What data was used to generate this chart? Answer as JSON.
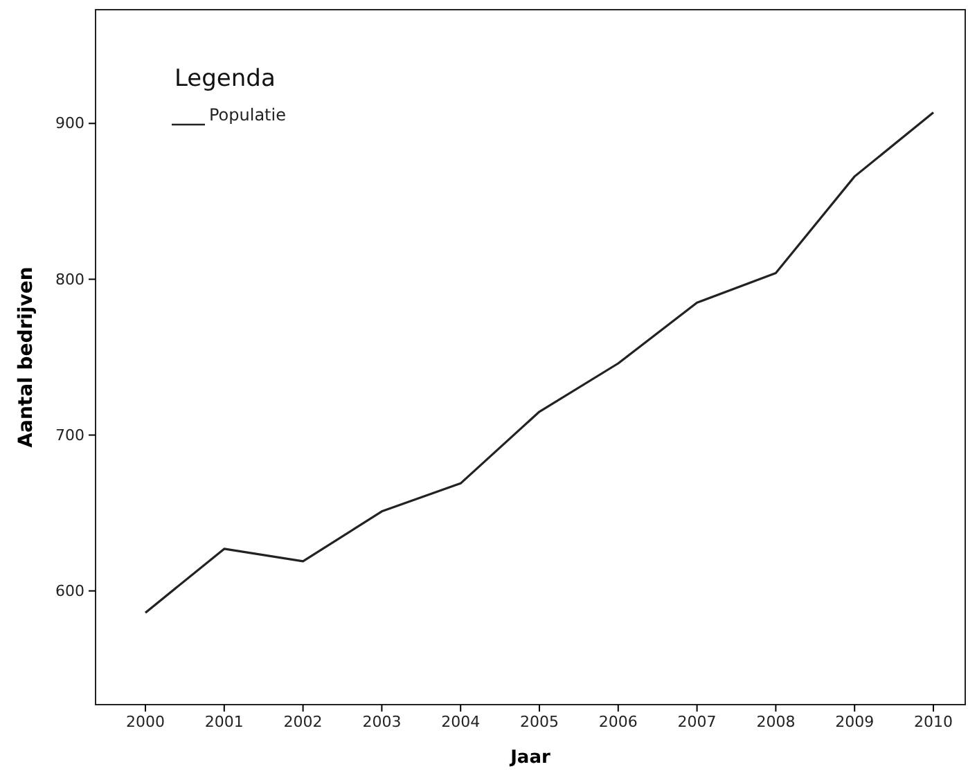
{
  "chart_data": {
    "type": "line",
    "xlabel": "Jaar",
    "ylabel": "Aantal bedrijven",
    "legend_title": "Legenda",
    "legend": "top left",
    "grid": false,
    "marker": "none",
    "line_style": "solid",
    "categories": [
      "2000",
      "2001",
      "2002",
      "2003",
      "2004",
      "2005",
      "2006",
      "2007",
      "2008",
      "2009",
      "2010"
    ],
    "series": [
      {
        "name": "Populatie",
        "color": "#222222",
        "values": [
          586,
          627,
          619,
          651,
          669,
          715,
          746,
          785,
          804,
          866,
          907
        ]
      }
    ],
    "ylim": [
      527,
      973
    ],
    "yticks": [
      600,
      700,
      800,
      900
    ]
  }
}
